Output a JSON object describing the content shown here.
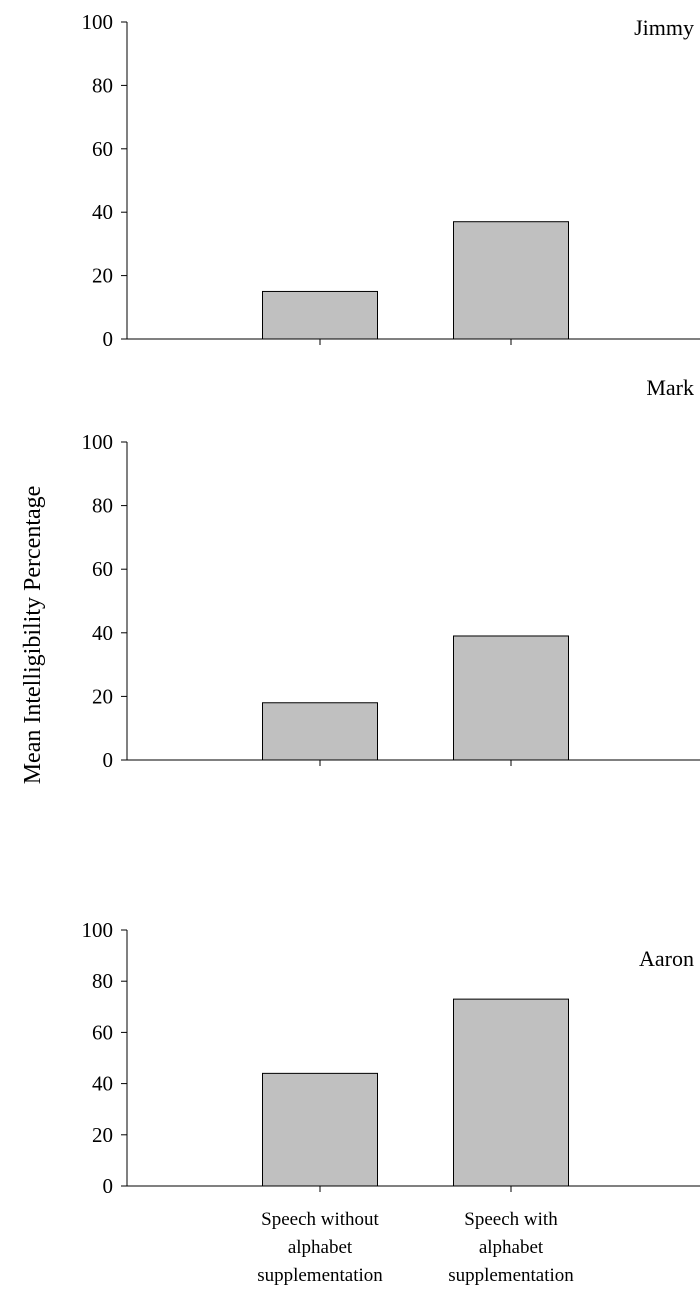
{
  "chart_data": {
    "type": "bar",
    "ylabel": "Mean Intelligibility Percentage",
    "categories": [
      [
        "Speech without",
        "alphabet",
        "supplementation"
      ],
      [
        "Speech with",
        "alphabet",
        "supplementation"
      ]
    ],
    "ylim": [
      0,
      100
    ],
    "yticks": [
      0,
      20,
      40,
      60,
      80,
      100
    ],
    "bar_color": "#c0c0c0",
    "bar_edge_color": "#000000",
    "panels": [
      {
        "title": "Jimmy",
        "title_position": "top-right",
        "values": [
          15,
          37
        ]
      },
      {
        "title": "Mark",
        "title_position": "top-right",
        "values": [
          18,
          39
        ]
      },
      {
        "title": "Aaron",
        "title_position": "top-right",
        "values": [
          44,
          73
        ]
      }
    ]
  }
}
